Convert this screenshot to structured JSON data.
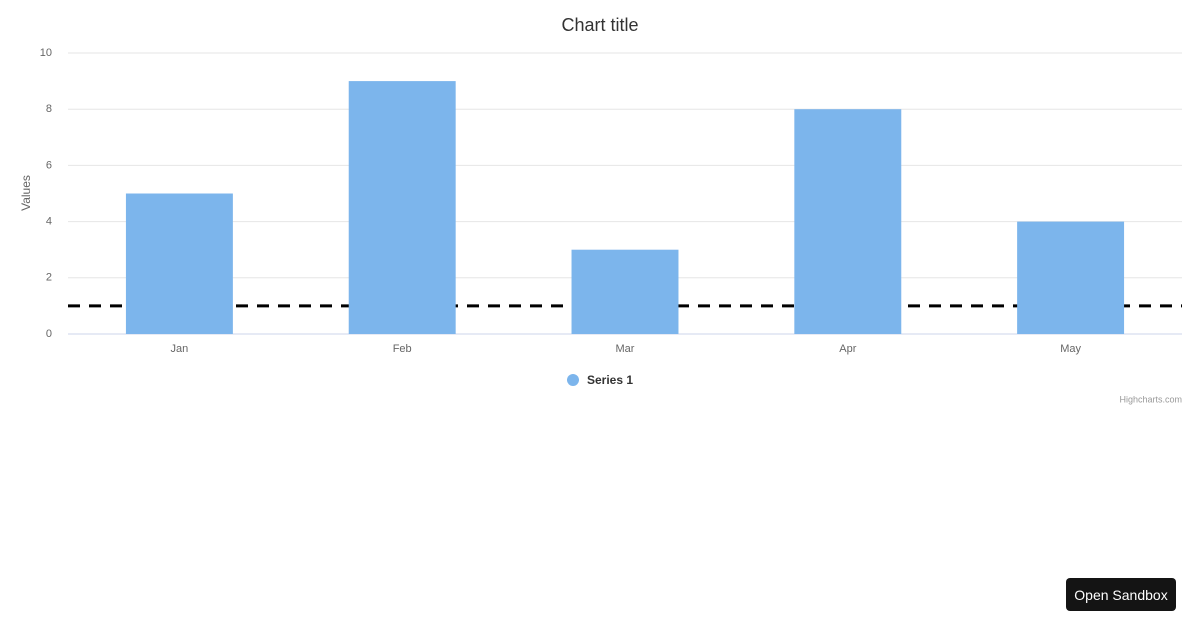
{
  "chart_data": {
    "type": "bar",
    "title": "Chart title",
    "y_label": "Values",
    "categories": [
      "Jan",
      "Feb",
      "Mar",
      "Apr",
      "May"
    ],
    "series": [
      {
        "name": "Series 1",
        "color": "#7cb5ec",
        "values": [
          5,
          9,
          3,
          8,
          4
        ]
      }
    ],
    "ylim": [
      0,
      10
    ],
    "yticks": [
      0,
      2,
      4,
      6,
      8,
      10
    ],
    "grid": true,
    "plot_lines": [
      {
        "value": 1,
        "color": "#000000",
        "dashed": true
      }
    ],
    "legend": "bottom",
    "credits": "Highcharts.com"
  },
  "button": {
    "label": "Open Sandbox"
  }
}
